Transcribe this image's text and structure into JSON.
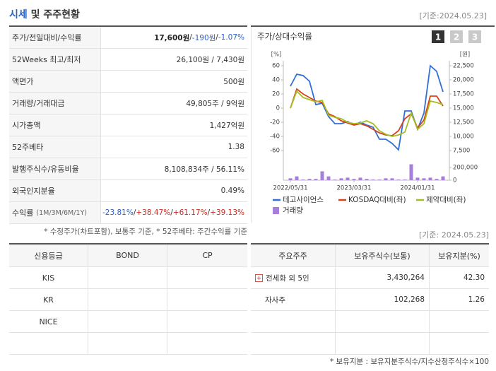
{
  "header": {
    "title_parts": [
      "시세",
      "및 주주현황"
    ],
    "date": "[기준:2024.05.23]"
  },
  "market": {
    "rows": [
      {
        "label": "주가/전일대비/수익률",
        "parts": [
          {
            "text": "17,600원",
            "tone": "bold"
          },
          {
            "text": " / "
          },
          {
            "text": "-190원",
            "tone": "down"
          },
          {
            "text": " / "
          },
          {
            "text": "-1.07%",
            "tone": "down"
          }
        ]
      },
      {
        "label": "52Weeks 최고/최저",
        "parts": [
          {
            "text": "26,100원 / 7,430원"
          }
        ]
      },
      {
        "label": "액면가",
        "parts": [
          {
            "text": "500원"
          }
        ]
      },
      {
        "label": "거래량/거래대금",
        "parts": [
          {
            "text": "49,805주 / 9억원"
          }
        ]
      },
      {
        "label": "시가총액",
        "parts": [
          {
            "text": "1,427억원"
          }
        ]
      },
      {
        "label": "52주베타",
        "parts": [
          {
            "text": "1.38"
          }
        ]
      },
      {
        "label": "발행주식수/유동비율",
        "parts": [
          {
            "text": "8,108,834주 / 56.11%"
          }
        ]
      },
      {
        "label": "외국인지분율",
        "parts": [
          {
            "text": "0.49%"
          }
        ]
      },
      {
        "label": "수익률",
        "sublabel": "(1M/3M/6M/1Y)",
        "parts": [
          {
            "text": "-23.81%",
            "tone": "down"
          },
          {
            "text": " / "
          },
          {
            "text": "+38.47%",
            "tone": "up"
          },
          {
            "text": " / "
          },
          {
            "text": "+61.17%",
            "tone": "up"
          },
          {
            "text": " / "
          },
          {
            "text": "+39.13%",
            "tone": "up"
          }
        ]
      }
    ]
  },
  "market_note": "* 수정주가(차트포함), 보통주 기준, * 52주베타: 주간수익률 기준",
  "chart_data": {
    "type": "line",
    "title": "주가/상대수익률",
    "tabs": [
      "1",
      "2",
      "3"
    ],
    "categories": [
      "2022/05/31",
      null,
      null,
      null,
      null,
      null,
      null,
      null,
      null,
      null,
      "2023/03/31",
      null,
      null,
      null,
      null,
      null,
      null,
      null,
      null,
      null,
      "2024/01/31",
      null,
      null,
      null,
      null
    ],
    "series": [
      {
        "name": "테고사이언스",
        "color": "#2f6fd6",
        "axis": "y2",
        "values": [
          18875,
          21000,
          20750,
          19750,
          15625,
          15875,
          13500,
          12250,
          12250,
          12625,
          12000,
          12500,
          12000,
          11625,
          9500,
          9500,
          8750,
          7625,
          14500,
          14500,
          11250,
          14125,
          22500,
          21500,
          17875
        ]
      },
      {
        "name": "KOSDAQ대비(좌)",
        "color": "#d8411e",
        "values": [
          0,
          27,
          20,
          15,
          10,
          8,
          -8,
          -12,
          -18,
          -21,
          -24,
          -22,
          -25,
          -30,
          -35,
          -38,
          -39,
          -32,
          -15,
          -8,
          -28,
          -17,
          17,
          17,
          3
        ]
      },
      {
        "name": "제약대비(좌)",
        "color": "#a2bf1f",
        "values": [
          0,
          24,
          15,
          12,
          9,
          11,
          -10,
          -13,
          -15,
          -20,
          -22,
          -21,
          -18,
          -22,
          -32,
          -37,
          -40,
          -38,
          -34,
          -7,
          -30,
          -22,
          10,
          8,
          5
        ]
      },
      {
        "name": "거래량",
        "color": "#a77fd9",
        "type": "bar",
        "axis": "y3",
        "values": [
          30000,
          60000,
          10000,
          20000,
          20000,
          140000,
          60000,
          10000,
          30000,
          40000,
          20000,
          40000,
          20000,
          10000,
          10000,
          30000,
          30000,
          10000,
          10000,
          250000,
          40000,
          30000,
          40000,
          20000,
          60000
        ]
      }
    ],
    "ylabel": "[%]",
    "ylim": [
      -60,
      60
    ],
    "yticks": [
      60,
      40,
      20,
      0,
      -20,
      -40,
      -60
    ],
    "y2label": "[원]",
    "y2lim": [
      7500,
      22500
    ],
    "y2ticks": [
      {
        "value": 22500,
        "label": "22,500"
      },
      {
        "value": 20000,
        "label": "20,000"
      },
      {
        "value": 17500,
        "label": "17,500"
      },
      {
        "value": 15000,
        "label": "15,000"
      },
      {
        "value": 12500,
        "label": "12,500"
      },
      {
        "value": 10000,
        "label": "10,000"
      },
      {
        "value": 7500,
        "label": "7,500"
      }
    ],
    "y3lim": [
      0,
      250000
    ],
    "y3ticks": [
      {
        "value": 200000,
        "label": "200,000"
      },
      0
    ]
  },
  "bottom_date": "[기준: 2024.05.23]",
  "credit": {
    "header": [
      "신용등급",
      "BOND",
      "CP"
    ],
    "rows": [
      [
        "KIS"
      ],
      [
        "KR"
      ],
      [
        "NICE"
      ]
    ]
  },
  "holders": {
    "header": [
      "주요주주",
      "보유주식수(보통)",
      "보유지분(%)"
    ],
    "rows": [
      [
        "전세화 외 5인",
        "3,430,264",
        "42.30"
      ],
      [
        "자사주",
        "102,268",
        "1.26"
      ]
    ]
  },
  "footnote": "* 보유지분 : 보유지분주식수/지수산정주식수×100"
}
